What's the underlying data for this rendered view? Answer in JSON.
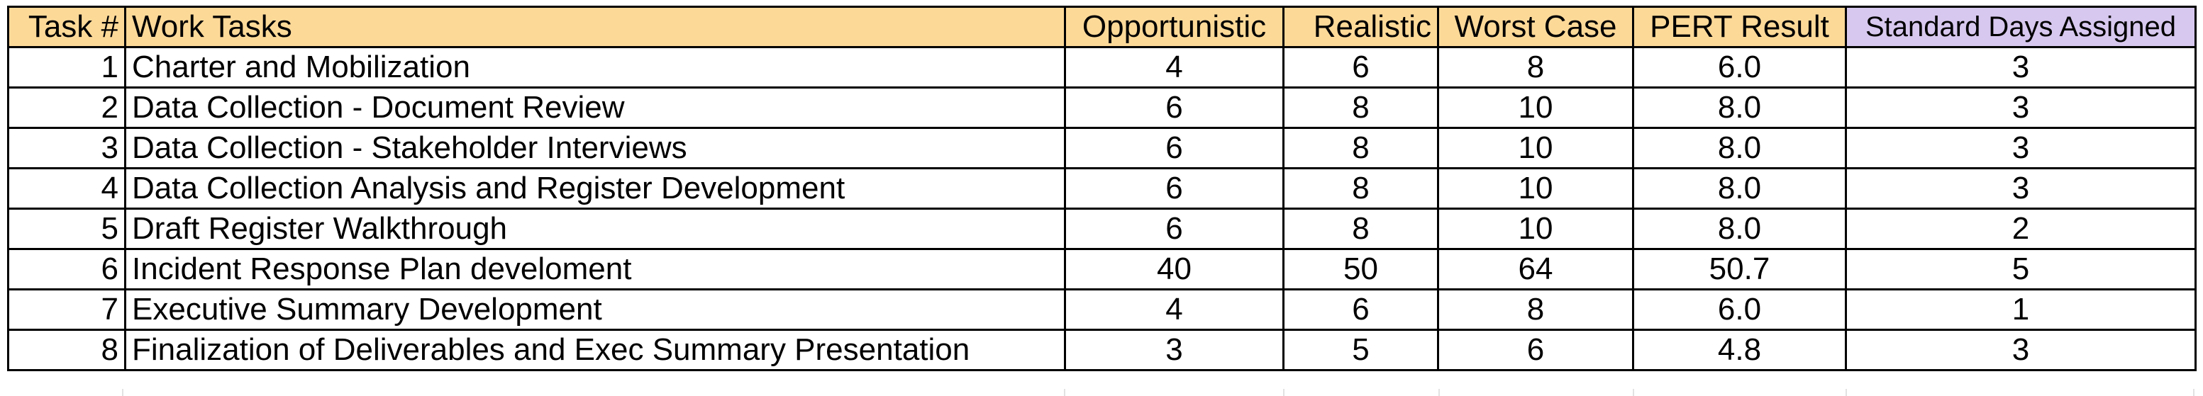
{
  "header": {
    "task_num": "Task #",
    "work_tasks": "Work Tasks",
    "opportunistic": "Opportunistic",
    "realistic": "Realistic",
    "worst_case": "Worst Case",
    "pert_result": "PERT Result",
    "standard_days": "Standard Days Assigned"
  },
  "rows": [
    {
      "num": "1",
      "task": "Charter and Mobilization",
      "opp": "4",
      "real": "6",
      "worst": "8",
      "pert": "6.0",
      "days": "3"
    },
    {
      "num": "2",
      "task": "Data Collection - Document Review",
      "opp": "6",
      "real": "8",
      "worst": "10",
      "pert": "8.0",
      "days": "3"
    },
    {
      "num": "3",
      "task": "Data Collection - Stakeholder Interviews",
      "opp": "6",
      "real": "8",
      "worst": "10",
      "pert": "8.0",
      "days": "3"
    },
    {
      "num": "4",
      "task": "Data Collection Analysis and Register Development",
      "opp": "6",
      "real": "8",
      "worst": "10",
      "pert": "8.0",
      "days": "3"
    },
    {
      "num": "5",
      "task": "Draft Register Walkthrough",
      "opp": "6",
      "real": "8",
      "worst": "10",
      "pert": "8.0",
      "days": "2"
    },
    {
      "num": "6",
      "task": "Incident Response Plan develoment",
      "opp": "40",
      "real": "50",
      "worst": "64",
      "pert": "50.7",
      "days": "5"
    },
    {
      "num": "7",
      "task": "Executive Summary Development",
      "opp": "4",
      "real": "6",
      "worst": "8",
      "pert": "6.0",
      "days": "1"
    },
    {
      "num": "8",
      "task": "Finalization of Deliverables and Exec Summary Presentation",
      "opp": "3",
      "real": "5",
      "worst": "6",
      "pert": "4.8",
      "days": "3"
    }
  ],
  "colors": {
    "header_fill": "#fdd998",
    "standard_days_fill": "#d7c8ef",
    "border": "#000000"
  }
}
